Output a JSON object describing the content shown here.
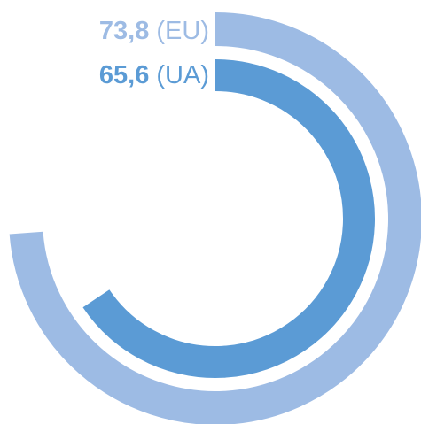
{
  "chart_data": {
    "type": "radial-bar",
    "ylim": [
      0,
      100
    ],
    "series": [
      {
        "name": "(EU)",
        "color": "#9dbbe4",
        "values": [
          73.8
        ],
        "value_labels": [
          "73,8"
        ]
      },
      {
        "name": "(UA)",
        "color": "#5b9bd5",
        "values": [
          65.6
        ],
        "value_labels": [
          "65,6"
        ]
      }
    ]
  }
}
